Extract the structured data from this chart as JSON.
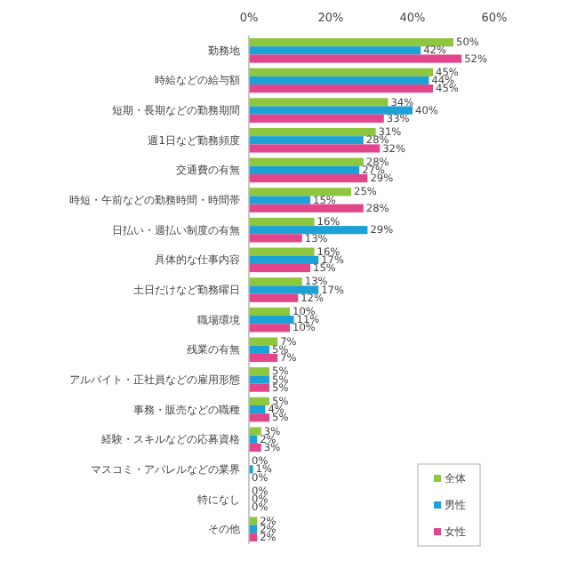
{
  "chart_data": {
    "type": "bar",
    "orientation": "horizontal",
    "categories": [
      "勤務地",
      "時給などの給与額",
      "短期・長期などの勤務期間",
      "週1日など勤務頻度",
      "交通費の有無",
      "時短・午前などの勤務時間・時間帯",
      "日払い・週払い制度の有無",
      "具体的な仕事内容",
      "土日だけなど勤務曜日",
      "職場環境",
      "残業の有無",
      "アルバイト・正社員などの雇用形態",
      "事務・販売などの職種",
      "経験・スキルなどの応募資格",
      "マスコミ・アパレルなどの業界",
      "特になし",
      "その他"
    ],
    "series": [
      {
        "name": "全体",
        "color": "#8dc63f",
        "values": [
          50,
          45,
          34,
          31,
          28,
          25,
          16,
          16,
          13,
          10,
          7,
          5,
          5,
          3,
          0,
          0,
          2
        ],
        "value_labels": [
          "50%",
          "45%",
          "34%",
          "31%",
          "28%",
          "25%",
          "16%",
          "16%",
          "13%",
          "10%",
          "7%",
          "5%",
          "5%",
          "3%",
          "0%",
          "0%",
          "2%"
        ]
      },
      {
        "name": "男性",
        "color": "#1ba1d6",
        "values": [
          42,
          44,
          40,
          28,
          27,
          15,
          29,
          17,
          17,
          11,
          5,
          5,
          4,
          2,
          1,
          0,
          2
        ],
        "value_labels": [
          "42%",
          "44%",
          "40%",
          "28%",
          "27%",
          "15%",
          "29%",
          "17%",
          "17%",
          "11%",
          "5%",
          "5%",
          "4%",
          "2%",
          "1%",
          "0%",
          "2%"
        ]
      },
      {
        "name": "女性",
        "color": "#e2458a",
        "values": [
          52,
          45,
          33,
          32,
          29,
          28,
          13,
          15,
          12,
          10,
          7,
          5,
          5,
          3,
          0,
          0,
          2
        ],
        "value_labels": [
          "52%",
          "45%",
          "33%",
          "32%",
          "29%",
          "28%",
          "13%",
          "15%",
          "12%",
          "10%",
          "7%",
          "5%",
          "5%",
          "3%",
          "0%",
          "0%",
          "2%"
        ]
      }
    ],
    "xlim": [
      0,
      60
    ],
    "xticks": [
      {
        "value": 0,
        "label": "0%"
      },
      {
        "value": 20,
        "label": "20%"
      },
      {
        "value": 40,
        "label": "40%"
      },
      {
        "value": 60,
        "label": "60%"
      }
    ],
    "legend": "bottom right"
  }
}
